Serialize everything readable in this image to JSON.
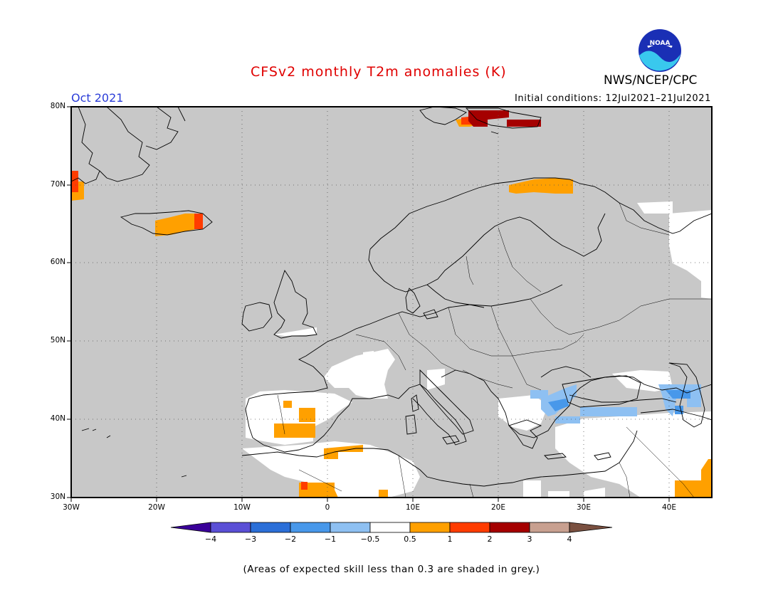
{
  "header": {
    "title": "CFSv2 monthly T2m anomalies (K)",
    "organization": "NWS/NCEP/CPC",
    "valid_month": "Oct 2021",
    "initial_conditions": "Initial conditions: 12Jul2021–21Jul2021",
    "logo_text": "NOAA"
  },
  "map": {
    "region": "Europe",
    "lon_range": [
      -30,
      45
    ],
    "lat_range": [
      30,
      80
    ],
    "lat_labels": [
      "80N",
      "70N",
      "60N",
      "50N",
      "40N",
      "30N"
    ],
    "lon_labels": [
      "30W",
      "20W",
      "10W",
      "0",
      "10E",
      "20E",
      "30E",
      "40E"
    ],
    "land_fill_color": "#c8c8c8"
  },
  "colorbar": {
    "tick_labels": [
      "−4",
      "−3",
      "−2",
      "−1",
      "−0.5",
      "0.5",
      "1",
      "2",
      "3",
      "4"
    ],
    "colors": {
      "below_-4": "#3a0099",
      "-4_-3": "#5a4fd6",
      "-3_-2": "#2b6fd8",
      "-2_-1": "#4898ea",
      "-1_-0.5": "#8ec0f2",
      "-0.5_0.5": "#ffffff",
      "0.5_1": "#ffa000",
      "1_2": "#ff3c00",
      "2_3": "#a50000",
      "3_4": "#c8a090",
      "above_4": "#7a5040"
    }
  },
  "footnote": "(Areas of expected skill less than 0.3 are shaded in grey.)"
}
